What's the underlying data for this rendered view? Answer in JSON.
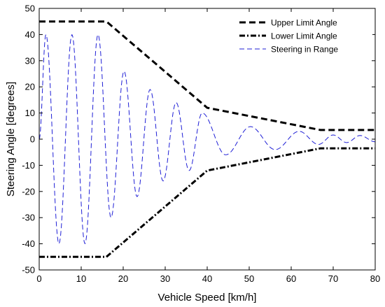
{
  "chart_data": {
    "type": "line",
    "title": "",
    "xlabel": "Vehicle Speed [km/h]",
    "ylabel": "Steering Angle [degrees]",
    "xlim": [
      0,
      80
    ],
    "ylim": [
      -50,
      50
    ],
    "xticks": [
      0,
      10,
      20,
      30,
      40,
      50,
      60,
      70,
      80
    ],
    "yticks": [
      -50,
      -40,
      -30,
      -20,
      -10,
      0,
      10,
      20,
      30,
      40,
      50
    ],
    "grid": false,
    "legend_position": "top-right",
    "series": [
      {
        "name": "Upper Limit Angle",
        "style": "dashed",
        "color": "#000000",
        "x": [
          0,
          16,
          40,
          67,
          80
        ],
        "y": [
          45,
          45,
          12,
          3.5,
          3.5
        ]
      },
      {
        "name": "Lower Limit Angle",
        "style": "dashdot",
        "color": "#000000",
        "x": [
          0,
          16,
          40,
          67,
          80
        ],
        "y": [
          -45,
          -45,
          -12,
          -3.5,
          -3.5
        ]
      },
      {
        "name": "Steering in Range",
        "style": "dashed-thin",
        "color": "#1f1fd6",
        "x": [
          0,
          1.6,
          4.7,
          7.8,
          10.9,
          14.0,
          17.1,
          20.2,
          23.3,
          26.4,
          29.5,
          32.6,
          35.7,
          38.8,
          44.4,
          50.3,
          56.2,
          61.9,
          66.5,
          70.0,
          73.2,
          76.4,
          80
        ],
        "y": [
          0,
          40,
          -40,
          40,
          -40,
          40,
          -30,
          26,
          -22,
          19,
          -16,
          14,
          -12,
          10,
          -6,
          4.8,
          -4,
          3,
          -2,
          1.6,
          -1.3,
          1.4,
          -1
        ]
      }
    ]
  }
}
